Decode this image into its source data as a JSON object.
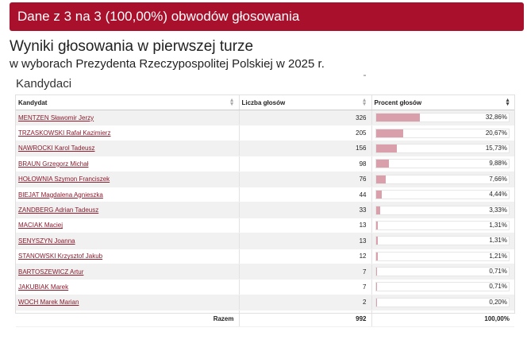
{
  "banner": {
    "text": "Dane z 3 na 3 (100,00%) obwodów głosowania"
  },
  "header": {
    "title": "Wyniki głosowania w pierwszej turze",
    "subtitle": "w wyborach Prezydenta Rzeczypospolitej Polskiej w 2025 r."
  },
  "section": {
    "title": "Kandydaci"
  },
  "table": {
    "columns": [
      "Kandydat",
      "Liczba głosów",
      "Procent głosów"
    ],
    "rows": [
      {
        "name": "MENTZEN Sławomir Jerzy",
        "votes": "326",
        "percent_label": "32,86%",
        "percent": 32.86
      },
      {
        "name": "TRZASKOWSKI Rafał Kazimierz",
        "votes": "205",
        "percent_label": "20,67%",
        "percent": 20.67
      },
      {
        "name": "NAWROCKI Karol Tadeusz",
        "votes": "156",
        "percent_label": "15,73%",
        "percent": 15.73
      },
      {
        "name": "BRAUN Grzegorz Michał",
        "votes": "98",
        "percent_label": "9,88%",
        "percent": 9.88
      },
      {
        "name": "HOŁOWNIA Szymon Franciszek",
        "votes": "76",
        "percent_label": "7,66%",
        "percent": 7.66
      },
      {
        "name": "BIEJAT Magdalena Agnieszka",
        "votes": "44",
        "percent_label": "4,44%",
        "percent": 4.44
      },
      {
        "name": "ZANDBERG Adrian Tadeusz",
        "votes": "33",
        "percent_label": "3,33%",
        "percent": 3.33
      },
      {
        "name": "MACIAK Maciej",
        "votes": "13",
        "percent_label": "1,31%",
        "percent": 1.31
      },
      {
        "name": "SENYSZYN Joanna",
        "votes": "13",
        "percent_label": "1,31%",
        "percent": 1.31
      },
      {
        "name": "STANOWSKI Krzysztof Jakub",
        "votes": "12",
        "percent_label": "1,21%",
        "percent": 1.21
      },
      {
        "name": "BARTOSZEWICZ Artur",
        "votes": "7",
        "percent_label": "0,71%",
        "percent": 0.71
      },
      {
        "name": "JAKUBIAK Marek",
        "votes": "7",
        "percent_label": "0,71%",
        "percent": 0.71
      },
      {
        "name": "WOCH Marek Marian",
        "votes": "2",
        "percent_label": "0,20%",
        "percent": 0.2
      }
    ],
    "total": {
      "label": "Razem",
      "votes": "992",
      "percent_label": "100,00%"
    }
  },
  "colors": {
    "banner": "#a8102b",
    "bar": "#d9a0ab",
    "link": "#8b1a2b"
  }
}
